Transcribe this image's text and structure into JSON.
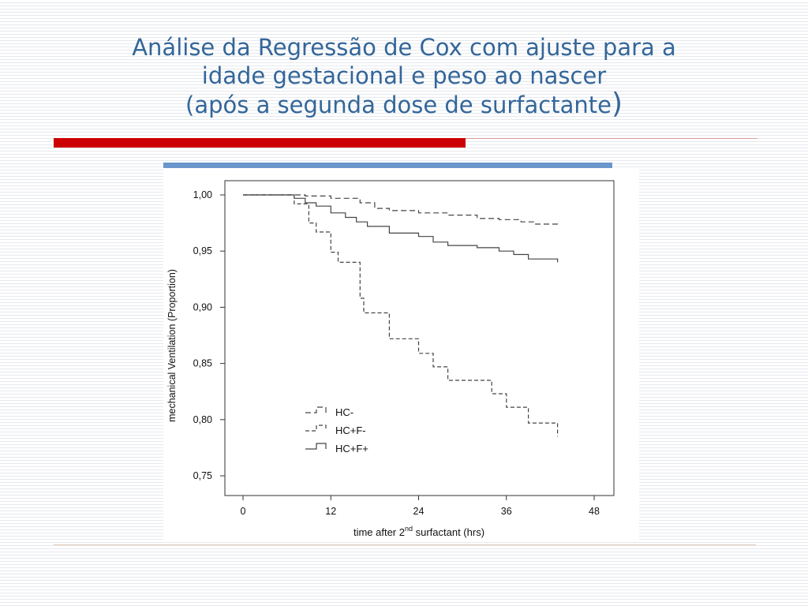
{
  "slide": {
    "title_line1": "Análise da Regressão de Cox com ajuste para a",
    "title_line2": "idade gestacional e peso ao nascer",
    "title_line3": "(após a segunda dose de surfactante",
    "title_paren": ")"
  },
  "colors": {
    "title": "#336699",
    "accent_red": "#cc0000",
    "accent_blue": "#6a96cb"
  },
  "chart_data": {
    "type": "line",
    "title": "",
    "xlabel_main": "time after 2",
    "xlabel_sup": "nd",
    "xlabel_rest": " surfactant (hrs)",
    "ylabel": "mechanical Ventilation (Proportion)",
    "xlim": [
      0,
      48
    ],
    "ylim": [
      0.75,
      1.0
    ],
    "x_ticks": [
      0,
      12,
      24,
      36,
      48
    ],
    "x_tick_labels": [
      "0",
      "12",
      "24",
      "36",
      "48"
    ],
    "y_ticks": [
      0.75,
      0.8,
      0.85,
      0.9,
      0.95,
      1.0
    ],
    "y_tick_labels": [
      "0,75",
      "0,80",
      "0,85",
      "0,90",
      "0,95",
      "1,00"
    ],
    "grid": false,
    "legend_position": "bottom-left",
    "series": [
      {
        "name": "HC-",
        "style": "dashed",
        "x": [
          0,
          7,
          8.5,
          12,
          16,
          18,
          20,
          24,
          28,
          32,
          35,
          38,
          40,
          43
        ],
        "y": [
          1.0,
          1.0,
          0.999,
          0.997,
          0.993,
          0.988,
          0.986,
          0.984,
          0.982,
          0.979,
          0.978,
          0.976,
          0.974,
          0.973
        ]
      },
      {
        "name": "HC+F-",
        "style": "dashed",
        "x": [
          0,
          7,
          9,
          10,
          12,
          13,
          16,
          16.5,
          17,
          20,
          24,
          26,
          28,
          34,
          36,
          39,
          43
        ],
        "y": [
          1.0,
          0.992,
          0.975,
          0.967,
          0.949,
          0.94,
          0.908,
          0.895,
          0.895,
          0.872,
          0.859,
          0.847,
          0.835,
          0.823,
          0.811,
          0.797,
          0.785
        ]
      },
      {
        "name": "HC+F+",
        "style": "solid",
        "x": [
          0,
          7,
          8.5,
          10,
          12,
          14,
          15.5,
          17,
          20,
          24,
          26,
          28,
          32,
          35,
          37,
          39,
          43
        ],
        "y": [
          1.0,
          0.997,
          0.993,
          0.99,
          0.984,
          0.98,
          0.976,
          0.972,
          0.966,
          0.963,
          0.958,
          0.955,
          0.953,
          0.95,
          0.947,
          0.943,
          0.94
        ]
      }
    ]
  }
}
